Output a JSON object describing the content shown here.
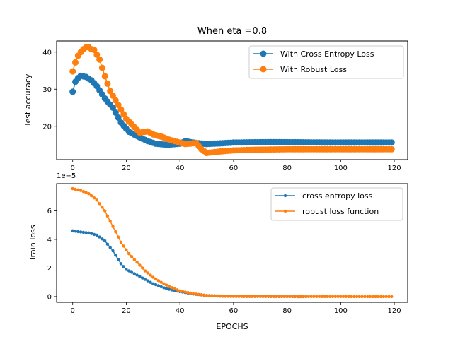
{
  "chart_data": [
    {
      "type": "line",
      "title": "When eta =0.8",
      "xlabel": "",
      "ylabel": "Test accuracy",
      "xlim": [
        -6,
        125
      ],
      "ylim": [
        11,
        43
      ],
      "xticks": [
        0,
        20,
        40,
        60,
        80,
        100,
        120
      ],
      "yticks": [
        20,
        30,
        40
      ],
      "legend_location": "top-right",
      "series": [
        {
          "name": "With Cross Entropy Loss",
          "color": "#1f77b4",
          "marker": "large-circle",
          "knots": [
            [
              0,
              29.3
            ],
            [
              1,
              32
            ],
            [
              2,
              33
            ],
            [
              3,
              33.6
            ],
            [
              5,
              33.3
            ],
            [
              7,
              32.4
            ],
            [
              9,
              30.8
            ],
            [
              12,
              27.5
            ],
            [
              15,
              25
            ],
            [
              18,
              21
            ],
            [
              21,
              18.5
            ],
            [
              25,
              17
            ],
            [
              28,
              16
            ],
            [
              31,
              15.3
            ],
            [
              35,
              15
            ],
            [
              40,
              15.3
            ],
            [
              42,
              16
            ],
            [
              45,
              15.6
            ],
            [
              50,
              15.2
            ],
            [
              60,
              15.6
            ],
            [
              70,
              15.7
            ],
            [
              80,
              15.7
            ],
            [
              100,
              15.6
            ],
            [
              119,
              15.6
            ]
          ]
        },
        {
          "name": "With Robust Loss",
          "color": "#ff7f0e",
          "marker": "large-circle",
          "knots": [
            [
              0,
              34.8
            ],
            [
              1,
              37.2
            ],
            [
              2,
              39
            ],
            [
              3,
              40
            ],
            [
              4,
              40.8
            ],
            [
              5,
              41.3
            ],
            [
              6,
              41.3
            ],
            [
              7,
              40.8
            ],
            [
              8,
              40.6
            ],
            [
              10,
              38
            ],
            [
              12,
              33.5
            ],
            [
              14,
              29.5
            ],
            [
              16,
              27
            ],
            [
              18,
              24.5
            ],
            [
              20,
              22
            ],
            [
              22,
              20.5
            ],
            [
              25,
              18.3
            ],
            [
              28,
              18.6
            ],
            [
              30,
              17.8
            ],
            [
              33,
              17.2
            ],
            [
              36,
              16.4
            ],
            [
              39,
              15.8
            ],
            [
              42,
              15.2
            ],
            [
              46,
              15.5
            ],
            [
              48,
              13.8
            ],
            [
              50,
              12.8
            ],
            [
              55,
              13.2
            ],
            [
              60,
              13.5
            ],
            [
              70,
              13.7
            ],
            [
              80,
              13.8
            ],
            [
              100,
              13.8
            ],
            [
              119,
              13.8
            ]
          ]
        }
      ]
    },
    {
      "type": "line",
      "title": "",
      "xlabel": "EPOCHS",
      "ylabel": "Train loss",
      "axis_offset_text": "1e−5",
      "xlim": [
        -6,
        125
      ],
      "ylim": [
        -0.4,
        7.9
      ],
      "xticks": [
        0,
        20,
        40,
        60,
        80,
        100,
        120
      ],
      "yticks": [
        0,
        2,
        4,
        6
      ],
      "legend_location": "top-right",
      "series": [
        {
          "name": "cross entropy loss",
          "color": "#1f77b4",
          "marker": "small-dot",
          "knots": [
            [
              0,
              4.6
            ],
            [
              3,
              4.52
            ],
            [
              6,
              4.45
            ],
            [
              9,
              4.3
            ],
            [
              12,
              3.9
            ],
            [
              15,
              3.2
            ],
            [
              18,
              2.3
            ],
            [
              20,
              1.9
            ],
            [
              25,
              1.4
            ],
            [
              30,
              0.9
            ],
            [
              35,
              0.55
            ],
            [
              40,
              0.35
            ],
            [
              45,
              0.18
            ],
            [
              50,
              0.08
            ],
            [
              55,
              0.04
            ],
            [
              60,
              0.02
            ],
            [
              87,
              0.0
            ]
          ]
        },
        {
          "name": "robust loss function",
          "color": "#ff7f0e",
          "marker": "small-dot",
          "knots": [
            [
              0,
              7.55
            ],
            [
              3,
              7.42
            ],
            [
              6,
              7.2
            ],
            [
              9,
              6.75
            ],
            [
              12,
              6.0
            ],
            [
              15,
              4.9
            ],
            [
              18,
              3.8
            ],
            [
              21,
              3.0
            ],
            [
              24,
              2.4
            ],
            [
              27,
              1.8
            ],
            [
              30,
              1.35
            ],
            [
              33,
              1.0
            ],
            [
              36,
              0.7
            ],
            [
              40,
              0.4
            ],
            [
              45,
              0.2
            ],
            [
              50,
              0.08
            ],
            [
              55,
              0.03
            ],
            [
              60,
              0.01
            ],
            [
              119,
              0.0
            ]
          ]
        }
      ]
    }
  ]
}
